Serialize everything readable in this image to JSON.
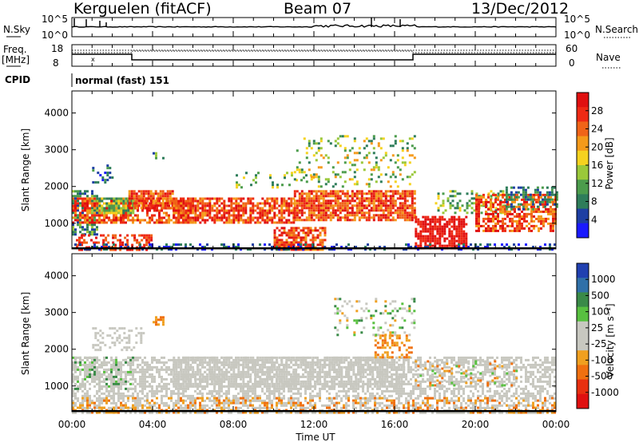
{
  "header": {
    "station": "Kerguelen (fitACF)",
    "beam": "Beam 07",
    "date": "13/Dec/2012"
  },
  "panels": {
    "nsky": {
      "left_label": "N.Sky",
      "right_label": "N.Search",
      "tick_top": "10^5",
      "tick_bottom": "10^0"
    },
    "freq": {
      "left_label_1": "Freq.",
      "left_label_2": "[MHz]",
      "left_tick_top": "18",
      "left_tick_bottom": "8",
      "right_label": "Nave",
      "right_tick_top": "60",
      "right_tick_bottom": "0"
    },
    "cpid": {
      "label": "CPID",
      "value": "normal (fast) 151"
    }
  },
  "colors": {
    "power": [
      "#1a1aff",
      "#1d3fa3",
      "#2e7d5a",
      "#4c9c4c",
      "#9ac83a",
      "#f5d21f",
      "#f59a1a",
      "#f06418",
      "#ee2a14",
      "#e01010"
    ],
    "velocity": [
      "#2040b0",
      "#3070a8",
      "#3a8a48",
      "#58c040",
      "#c8c8c0",
      "#c8c8c0",
      "#f0a020",
      "#f07010",
      "#e83010",
      "#e01010"
    ]
  },
  "chart_data": [
    {
      "type": "heatmap",
      "name": "power",
      "ylabel": "Slant Range [km]",
      "y_ticks": [
        "1000",
        "2000",
        "3000",
        "4000"
      ],
      "ylim": [
        300,
        4600
      ],
      "xlim_hours": [
        0,
        24
      ],
      "colorbar_label": "Power [dB]",
      "colorbar_ticks": [
        "4",
        "8",
        "12",
        "16",
        "20",
        "24",
        "28"
      ],
      "colorbar_range": [
        0,
        32
      ]
    },
    {
      "type": "heatmap",
      "name": "velocity",
      "ylabel": "Slant Range [km]",
      "y_ticks": [
        "1000",
        "2000",
        "3000",
        "4000"
      ],
      "ylim": [
        300,
        4600
      ],
      "xlim_hours": [
        0,
        24
      ],
      "xlabel": "Time UT",
      "x_ticks": [
        "00:00",
        "04:00",
        "08:00",
        "12:00",
        "16:00",
        "20:00",
        "00:00"
      ],
      "colorbar_label": "Velocity [m s⁻¹]",
      "colorbar_ticks": [
        "1000",
        "500",
        "100",
        "25",
        "-25",
        "-100",
        "-500",
        "-1000"
      ]
    }
  ]
}
